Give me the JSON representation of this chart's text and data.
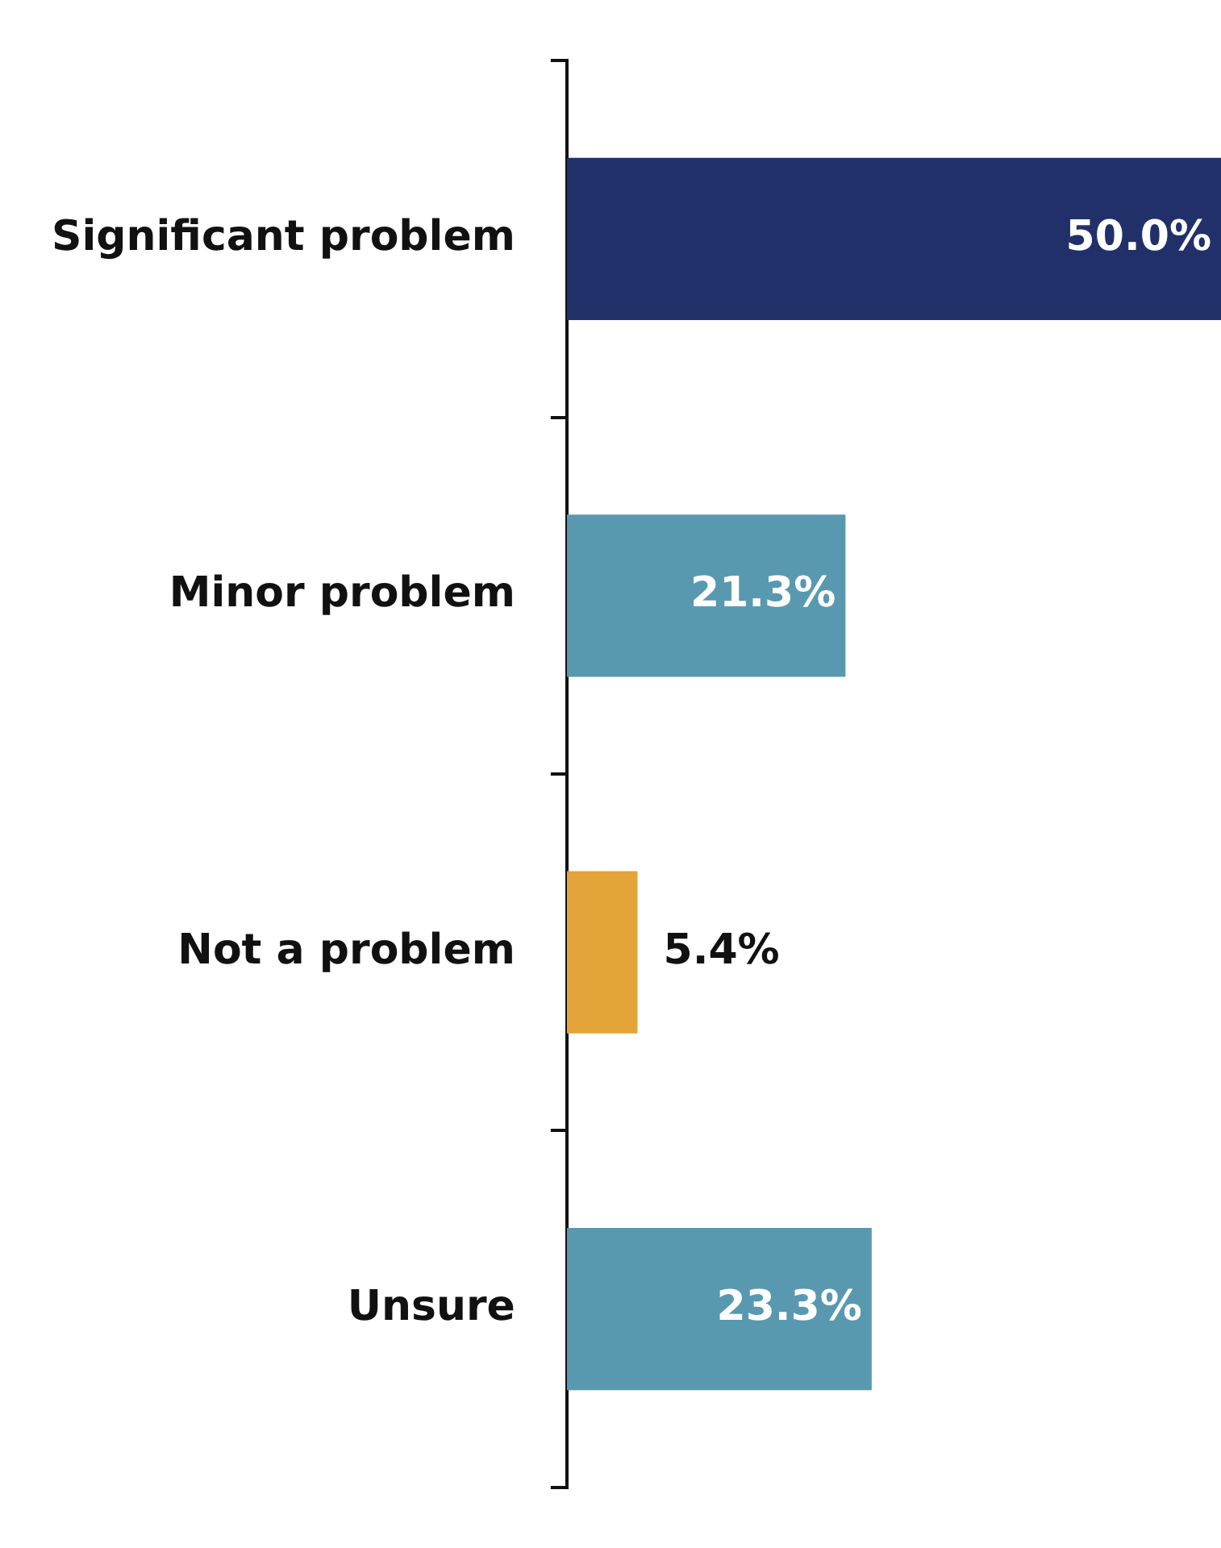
{
  "chart_data": {
    "type": "bar",
    "orientation": "horizontal",
    "categories": [
      "Significant problem",
      "Minor problem",
      "Not a problem",
      "Unsure"
    ],
    "values": [
      50.0,
      21.3,
      5.4,
      23.3
    ],
    "colors": [
      "#22306a",
      "#5899b0",
      "#e3a43a",
      "#5899b0"
    ],
    "value_labels": [
      "50.0%",
      "21.3%",
      "5.4%",
      "23.3%"
    ],
    "grid": false,
    "legend": false
  }
}
